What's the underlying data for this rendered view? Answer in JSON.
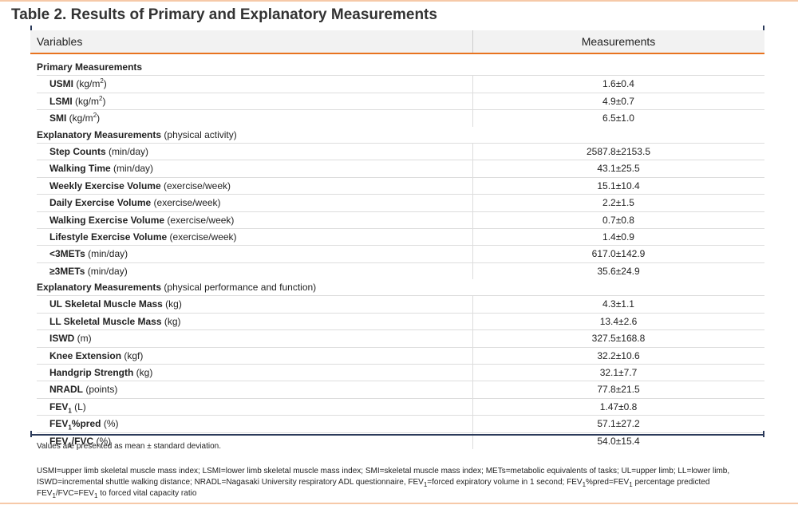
{
  "title": "Table 2. Results of Primary and Explanatory Measurements",
  "header": [
    "Variables",
    "Measurements"
  ],
  "rows": [
    {
      "kind": "section",
      "label": [
        {
          "text": "Primary Measurements",
          "style": "bold"
        }
      ]
    },
    {
      "kind": "item",
      "label": [
        {
          "text": "USMI",
          "style": "bold"
        },
        {
          "text": " (kg/m"
        },
        {
          "text": "2",
          "style": "sup"
        },
        {
          "text": ")"
        }
      ],
      "value": "1.6±0.4"
    },
    {
      "kind": "item",
      "label": [
        {
          "text": "LSMI",
          "style": "bold"
        },
        {
          "text": " (kg/m"
        },
        {
          "text": "2",
          "style": "sup"
        },
        {
          "text": ")"
        }
      ],
      "value": "4.9±0.7"
    },
    {
      "kind": "item",
      "label": [
        {
          "text": "SMI",
          "style": "bold"
        },
        {
          "text": " (kg/m"
        },
        {
          "text": "2",
          "style": "sup"
        },
        {
          "text": ")"
        }
      ],
      "value": "6.5±1.0"
    },
    {
      "kind": "section",
      "label": [
        {
          "text": "Explanatory Measurements",
          "style": "bold"
        },
        {
          "text": " (physical activity)"
        }
      ]
    },
    {
      "kind": "item",
      "label": [
        {
          "text": "Step Counts",
          "style": "bold"
        },
        {
          "text": " (min/day)"
        }
      ],
      "value": "2587.8±2153.5"
    },
    {
      "kind": "item",
      "label": [
        {
          "text": "Walking Time",
          "style": "bold"
        },
        {
          "text": " (min/day)"
        }
      ],
      "value": "43.1±25.5"
    },
    {
      "kind": "item",
      "label": [
        {
          "text": "Weekly Exercise Volume",
          "style": "bold"
        },
        {
          "text": " (exercise/week)"
        }
      ],
      "value": "15.1±10.4"
    },
    {
      "kind": "item",
      "label": [
        {
          "text": "Daily Exercise Volume",
          "style": "bold"
        },
        {
          "text": " (exercise/week)"
        }
      ],
      "value": "2.2±1.5"
    },
    {
      "kind": "item",
      "label": [
        {
          "text": "Walking Exercise Volume",
          "style": "bold"
        },
        {
          "text": " (exercise/week)"
        }
      ],
      "value": "0.7±0.8"
    },
    {
      "kind": "item",
      "label": [
        {
          "text": "Lifestyle Exercise Volume",
          "style": "bold"
        },
        {
          "text": " (exercise/week)"
        }
      ],
      "value": "1.4±0.9"
    },
    {
      "kind": "item",
      "label": [
        {
          "text": "<3METs",
          "style": "bold"
        },
        {
          "text": " (min/day)"
        }
      ],
      "value": "617.0±142.9"
    },
    {
      "kind": "item",
      "label": [
        {
          "text": "≥3METs",
          "style": "bold"
        },
        {
          "text": " (min/day)"
        }
      ],
      "value": "35.6±24.9"
    },
    {
      "kind": "section",
      "label": [
        {
          "text": "Explanatory Measurements",
          "style": "bold"
        },
        {
          "text": " (physical performance and function)"
        }
      ]
    },
    {
      "kind": "item",
      "label": [
        {
          "text": "UL Skeletal Muscle Mass",
          "style": "bold"
        },
        {
          "text": " (kg)"
        }
      ],
      "value": "4.3±1.1"
    },
    {
      "kind": "item",
      "label": [
        {
          "text": "LL Skeletal Muscle Mass",
          "style": "bold"
        },
        {
          "text": " (kg)"
        }
      ],
      "value": "13.4±2.6"
    },
    {
      "kind": "item",
      "label": [
        {
          "text": "ISWD",
          "style": "bold"
        },
        {
          "text": " (m)"
        }
      ],
      "value": "327.5±168.8"
    },
    {
      "kind": "item",
      "label": [
        {
          "text": "Knee Extension",
          "style": "bold"
        },
        {
          "text": " (kgf)"
        }
      ],
      "value": "32.2±10.6"
    },
    {
      "kind": "item",
      "label": [
        {
          "text": "Handgrip Strength",
          "style": "bold"
        },
        {
          "text": " (kg)"
        }
      ],
      "value": "32.1±7.7"
    },
    {
      "kind": "item",
      "label": [
        {
          "text": "NRADL",
          "style": "bold"
        },
        {
          "text": " (points)"
        }
      ],
      "value": "77.8±21.5"
    },
    {
      "kind": "item",
      "label": [
        {
          "text": "FEV",
          "style": "bold"
        },
        {
          "text": "1",
          "style": "boldsub"
        },
        {
          "text": " (L)"
        }
      ],
      "value": "1.47±0.8"
    },
    {
      "kind": "item",
      "label": [
        {
          "text": "FEV",
          "style": "bold"
        },
        {
          "text": "1",
          "style": "boldsub"
        },
        {
          "text": "%pred",
          "style": "bold"
        },
        {
          "text": " (%)"
        }
      ],
      "value": "57.1±27.2"
    },
    {
      "kind": "item",
      "label": [
        {
          "text": "FEV",
          "style": "bold"
        },
        {
          "text": "1",
          "style": "boldsub"
        },
        {
          "text": "/FVC",
          "style": "bold"
        },
        {
          "text": " (%)"
        }
      ],
      "value": "54.0±15.4"
    }
  ],
  "note": "Values are presented as mean ± standard deviation.",
  "abbreviations": [
    {
      "text": "USMI=upper limb skeletal muscle mass index; LSMI=lower limb skeletal muscle mass index; SMI=skeletal muscle mass index; METs=metabolic equivalents of tasks; UL=upper limb; LL=lower limb, ISWD=incremental shuttle walking distance; NRADL=Nagasaki University respiratory ADL questionnaire, FEV"
    },
    {
      "text": "1",
      "style": "sub"
    },
    {
      "text": "=forced expiratory volume in 1 second; FEV"
    },
    {
      "text": "1",
      "style": "sub"
    },
    {
      "text": "%pred=FEV"
    },
    {
      "text": "1",
      "style": "sub"
    },
    {
      "text": " percentage predicted FEV"
    },
    {
      "text": "1",
      "style": "sub"
    },
    {
      "text": "/FVC=FEV"
    },
    {
      "text": "1",
      "style": "sub"
    },
    {
      "text": " to forced vital capacity ratio"
    }
  ]
}
